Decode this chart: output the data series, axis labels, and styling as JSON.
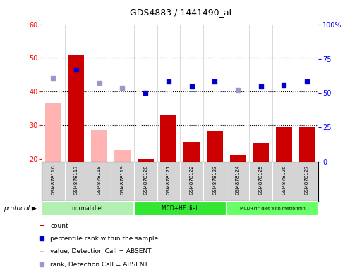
{
  "title": "GDS4883 / 1441490_at",
  "samples": [
    "GSM878116",
    "GSM878117",
    "GSM878118",
    "GSM878119",
    "GSM878120",
    "GSM878121",
    "GSM878122",
    "GSM878123",
    "GSM878124",
    "GSM878125",
    "GSM878126",
    "GSM878127"
  ],
  "count_values": [
    null,
    51,
    null,
    null,
    20,
    33,
    25,
    28,
    21,
    24.5,
    29.5,
    29.5
  ],
  "count_absent": [
    36.5,
    null,
    28.5,
    22.5,
    null,
    null,
    null,
    null,
    null,
    null,
    null,
    null
  ],
  "percentile_values": [
    null,
    46.5,
    null,
    null,
    39.5,
    43,
    41.5,
    43,
    null,
    41.5,
    42,
    43
  ],
  "percentile_absent": [
    44,
    null,
    42.5,
    41,
    null,
    null,
    null,
    null,
    40.5,
    null,
    null,
    null
  ],
  "ylim_left": [
    19,
    60
  ],
  "ylim_right": [
    0,
    100
  ],
  "yticks_left": [
    20,
    30,
    40,
    50,
    60
  ],
  "yticks_right": [
    0,
    25,
    50,
    75,
    100
  ],
  "ytick_labels_right": [
    "0",
    "25",
    "50",
    "75",
    "100%"
  ],
  "grid_lines": [
    30,
    40,
    50
  ],
  "protocol_groups": [
    {
      "label": "normal diet",
      "start": 0,
      "end": 3,
      "color": "#b2f0b2"
    },
    {
      "label": "MCD+HF diet",
      "start": 4,
      "end": 7,
      "color": "#33e633"
    },
    {
      "label": "MCD+HF diet with metformin",
      "start": 8,
      "end": 11,
      "color": "#66ff66"
    }
  ],
  "bar_color_count": "#cc0000",
  "bar_color_absent": "#ffb3b3",
  "dot_color_present": "#0000cc",
  "dot_color_absent": "#9999cc",
  "sample_bg": "#d4d4d4",
  "legend": [
    {
      "label": "count",
      "color": "#cc0000",
      "type": "bar"
    },
    {
      "label": "percentile rank within the sample",
      "color": "#0000cc",
      "type": "dot"
    },
    {
      "label": "value, Detection Call = ABSENT",
      "color": "#ffb3b3",
      "type": "bar"
    },
    {
      "label": "rank, Detection Call = ABSENT",
      "color": "#9999cc",
      "type": "dot"
    }
  ]
}
